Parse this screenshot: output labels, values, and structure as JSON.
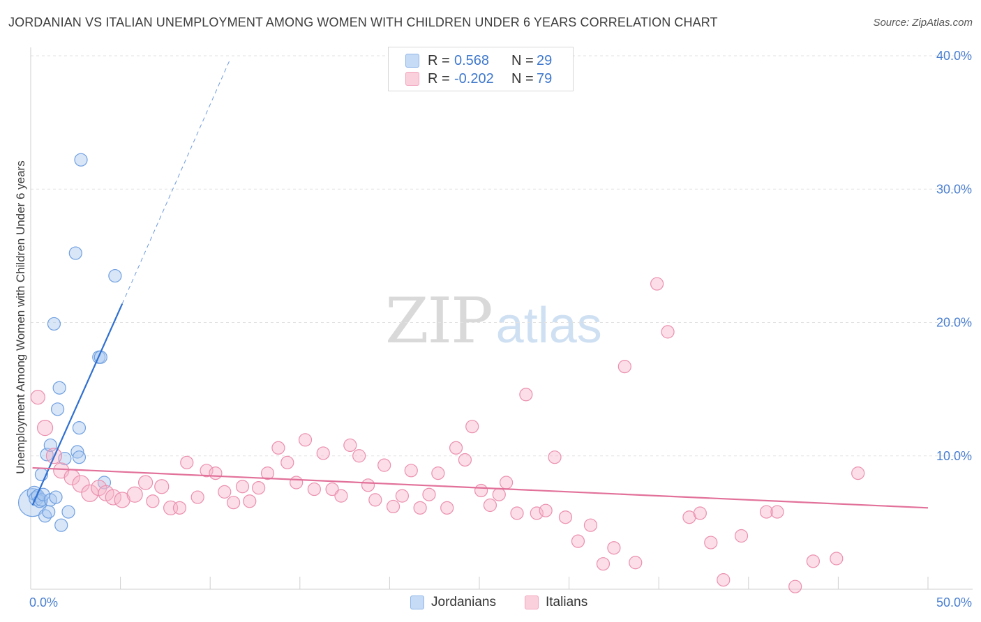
{
  "header": {
    "title": "JORDANIAN VS ITALIAN UNEMPLOYMENT AMONG WOMEN WITH CHILDREN UNDER 6 YEARS CORRELATION CHART",
    "source": "Source: ZipAtlas.com"
  },
  "watermark": {
    "zip": "ZIP",
    "atlas": "atlas"
  },
  "legend": {
    "rows": [
      {
        "r_label": "R =",
        "r_value": "0.568",
        "n_label": "N =",
        "n_value": "29",
        "color": "#a8c8f0"
      },
      {
        "r_label": "R =",
        "r_value": "-0.202",
        "n_label": "N =",
        "n_value": "79",
        "color": "#f7b6c9"
      }
    ]
  },
  "bottom_legend": {
    "jordanians": "Jordanians",
    "italians": "Italians"
  },
  "chart_data": {
    "type": "scatter",
    "ylabel": "Unemployment Among Women with Children Under 6 years",
    "x_tick_labels": {
      "min": "0.0%",
      "max": "50.0%"
    },
    "y_tick_labels": [
      "10.0%",
      "20.0%",
      "30.0%",
      "40.0%"
    ],
    "xlim": [
      0,
      50
    ],
    "ylim": [
      0,
      40
    ],
    "y_ticks": [
      10,
      20,
      30,
      40
    ],
    "grid": true,
    "series": [
      {
        "name": "Jordanians",
        "color": "#6f9fe0",
        "fill": "#a8c8f0",
        "trend": {
          "x0": 0.1,
          "y0": 6.3,
          "x1": 5.1,
          "y1": 21.4,
          "dash_to_x": 11.1,
          "dash_to_y": 39.7,
          "color": "#2f6fd0"
        },
        "points": [
          [
            0.1,
            6.5,
            20
          ],
          [
            0.2,
            7.2,
            10
          ],
          [
            0.3,
            6.8,
            10
          ],
          [
            0.4,
            7.0,
            9
          ],
          [
            0.5,
            6.6,
            9
          ],
          [
            0.6,
            8.6,
            9
          ],
          [
            0.6,
            6.7,
            9
          ],
          [
            0.7,
            7.1,
            9
          ],
          [
            0.8,
            5.5,
            9
          ],
          [
            0.9,
            10.1,
            9
          ],
          [
            1.0,
            5.8,
            9
          ],
          [
            1.1,
            10.8,
            9
          ],
          [
            1.1,
            6.7,
            9
          ],
          [
            1.3,
            19.9,
            9
          ],
          [
            1.4,
            6.9,
            9
          ],
          [
            1.5,
            13.5,
            9
          ],
          [
            1.6,
            15.1,
            9
          ],
          [
            1.7,
            4.8,
            9
          ],
          [
            1.9,
            9.8,
            9
          ],
          [
            2.1,
            5.8,
            9
          ],
          [
            2.5,
            25.2,
            9
          ],
          [
            2.6,
            10.3,
            9
          ],
          [
            2.7,
            12.1,
            9
          ],
          [
            2.7,
            9.9,
            9
          ],
          [
            2.8,
            32.2,
            9
          ],
          [
            3.8,
            17.4,
            9
          ],
          [
            3.9,
            17.4,
            9
          ],
          [
            4.1,
            8.0,
            9
          ],
          [
            4.7,
            23.5,
            9
          ]
        ]
      },
      {
        "name": "Italians",
        "color": "#eb8fae",
        "fill": "#f7b6c9",
        "trend": {
          "x0": 0.1,
          "y0": 9.1,
          "x1": 50,
          "y1": 6.1,
          "color": "#e2719a"
        },
        "points": [
          [
            0.4,
            14.4,
            10
          ],
          [
            0.8,
            12.1,
            11
          ],
          [
            1.3,
            10.0,
            11
          ],
          [
            1.7,
            8.9,
            11
          ],
          [
            2.3,
            8.4,
            11
          ],
          [
            2.8,
            7.9,
            12
          ],
          [
            3.3,
            7.2,
            12
          ],
          [
            3.8,
            7.6,
            11
          ],
          [
            4.2,
            7.2,
            11
          ],
          [
            4.6,
            6.9,
            11
          ],
          [
            5.1,
            6.7,
            11
          ],
          [
            5.8,
            7.1,
            11
          ],
          [
            6.4,
            8.0,
            10
          ],
          [
            6.8,
            6.6,
            9
          ],
          [
            7.3,
            7.7,
            10
          ],
          [
            7.8,
            6.1,
            10
          ],
          [
            8.3,
            6.1,
            9
          ],
          [
            8.7,
            9.5,
            9
          ],
          [
            9.3,
            6.9,
            9
          ],
          [
            9.8,
            8.9,
            9
          ],
          [
            10.3,
            8.7,
            9
          ],
          [
            10.8,
            7.3,
            9
          ],
          [
            11.3,
            6.5,
            9
          ],
          [
            11.8,
            7.7,
            9
          ],
          [
            12.2,
            6.6,
            9
          ],
          [
            12.7,
            7.6,
            9
          ],
          [
            13.2,
            8.7,
            9
          ],
          [
            13.8,
            10.6,
            9
          ],
          [
            14.3,
            9.5,
            9
          ],
          [
            14.8,
            8.0,
            9
          ],
          [
            15.3,
            11.2,
            9
          ],
          [
            15.8,
            7.5,
            9
          ],
          [
            16.3,
            10.2,
            9
          ],
          [
            16.8,
            7.5,
            9
          ],
          [
            17.3,
            7.0,
            9
          ],
          [
            17.8,
            10.8,
            9
          ],
          [
            18.3,
            10.0,
            9
          ],
          [
            18.8,
            7.8,
            9
          ],
          [
            19.2,
            6.7,
            9
          ],
          [
            19.7,
            9.3,
            9
          ],
          [
            20.2,
            6.2,
            9
          ],
          [
            20.7,
            7.0,
            9
          ],
          [
            21.2,
            8.9,
            9
          ],
          [
            21.7,
            6.1,
            9
          ],
          [
            22.2,
            7.1,
            9
          ],
          [
            22.7,
            8.7,
            9
          ],
          [
            23.2,
            6.1,
            9
          ],
          [
            23.7,
            10.6,
            9
          ],
          [
            24.2,
            9.7,
            9
          ],
          [
            24.6,
            12.2,
            9
          ],
          [
            25.1,
            7.4,
            9
          ],
          [
            25.6,
            6.3,
            9
          ],
          [
            26.1,
            7.1,
            9
          ],
          [
            26.5,
            8.0,
            9
          ],
          [
            27.1,
            5.7,
            9
          ],
          [
            27.6,
            14.6,
            9
          ],
          [
            28.2,
            5.7,
            9
          ],
          [
            28.7,
            5.9,
            9
          ],
          [
            29.2,
            9.9,
            9
          ],
          [
            29.8,
            5.4,
            9
          ],
          [
            30.5,
            3.6,
            9
          ],
          [
            31.2,
            4.8,
            9
          ],
          [
            31.9,
            1.9,
            9
          ],
          [
            32.5,
            3.1,
            9
          ],
          [
            33.1,
            16.7,
            9
          ],
          [
            33.7,
            2.0,
            9
          ],
          [
            34.9,
            22.9,
            9
          ],
          [
            35.5,
            19.3,
            9
          ],
          [
            36.7,
            5.4,
            9
          ],
          [
            37.3,
            5.7,
            9
          ],
          [
            37.9,
            3.5,
            9
          ],
          [
            38.6,
            0.7,
            9
          ],
          [
            39.6,
            4.0,
            9
          ],
          [
            41.0,
            5.8,
            9
          ],
          [
            41.6,
            5.8,
            9
          ],
          [
            42.6,
            0.2,
            9
          ],
          [
            43.6,
            2.1,
            9
          ],
          [
            44.9,
            2.3,
            9
          ],
          [
            46.1,
            8.7,
            9
          ]
        ]
      }
    ]
  }
}
